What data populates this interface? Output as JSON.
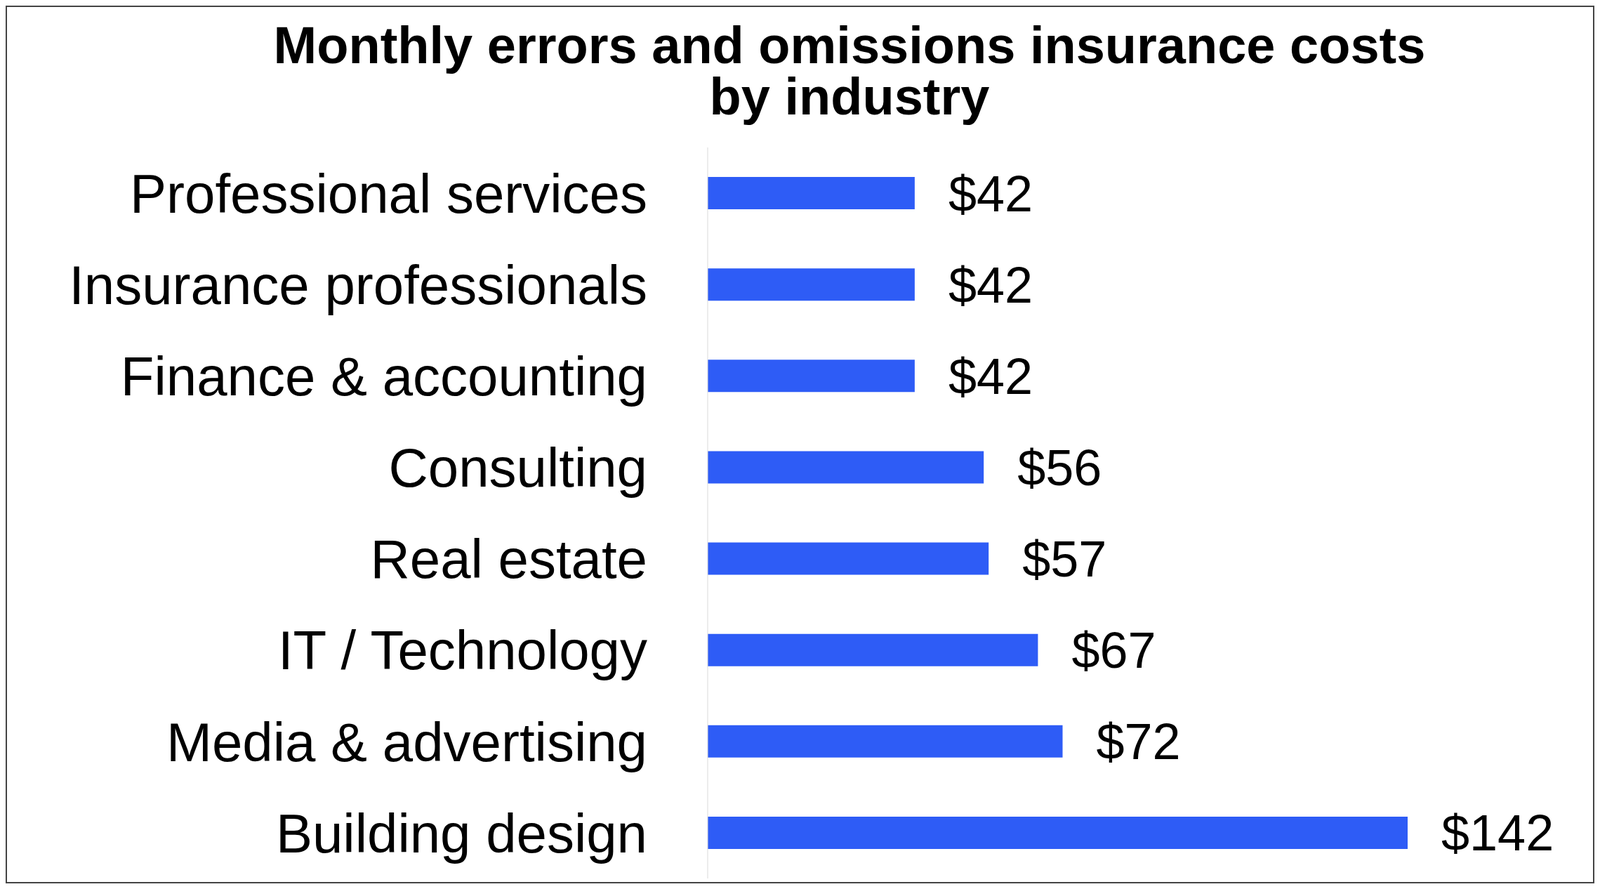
{
  "chart_data": {
    "type": "bar",
    "title": "Monthly errors and omissions insurance costs by industry",
    "orientation": "horizontal",
    "categories": [
      "Professional services",
      "Insurance professionals",
      "Finance & accounting",
      "Consulting",
      "Real estate",
      "IT / Technology",
      "Media & advertising",
      "Building design"
    ],
    "values": [
      42,
      42,
      42,
      56,
      57,
      67,
      72,
      142
    ],
    "value_labels": [
      "$42",
      "$42",
      "$42",
      "$56",
      "$57",
      "$67",
      "$72",
      "$142"
    ],
    "color": "#2e5cf6",
    "data_labels": true,
    "tick_labels": "y"
  }
}
